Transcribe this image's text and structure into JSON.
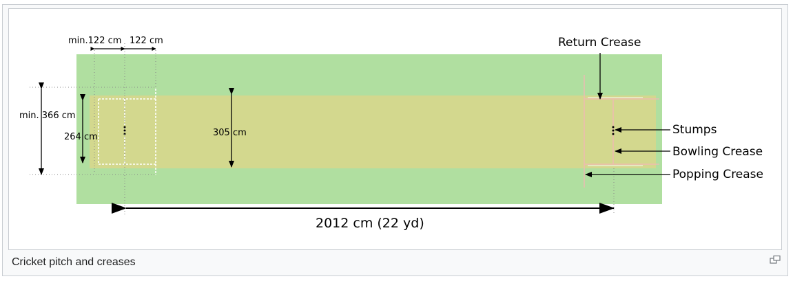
{
  "diagram": {
    "labels": {
      "return_crease": "Return Crease",
      "stumps": "Stumps",
      "bowling_crease": "Bowling Crease",
      "popping_crease": "Popping Crease"
    },
    "dimensions": {
      "min_122": "min.122 cm",
      "d_122": "122 cm",
      "min_366": "min. 366 cm",
      "d_264": "264 cm",
      "d_305": "305 cm",
      "length": "2012 cm (22 yd)"
    },
    "colors": {
      "outfield": "#b0dfa0",
      "pitch": "#d3d88e",
      "crease_lines": "#f4b6b6"
    }
  },
  "caption": {
    "text": "Cricket pitch and creases",
    "enlarge_icon": "enlarge-icon"
  }
}
